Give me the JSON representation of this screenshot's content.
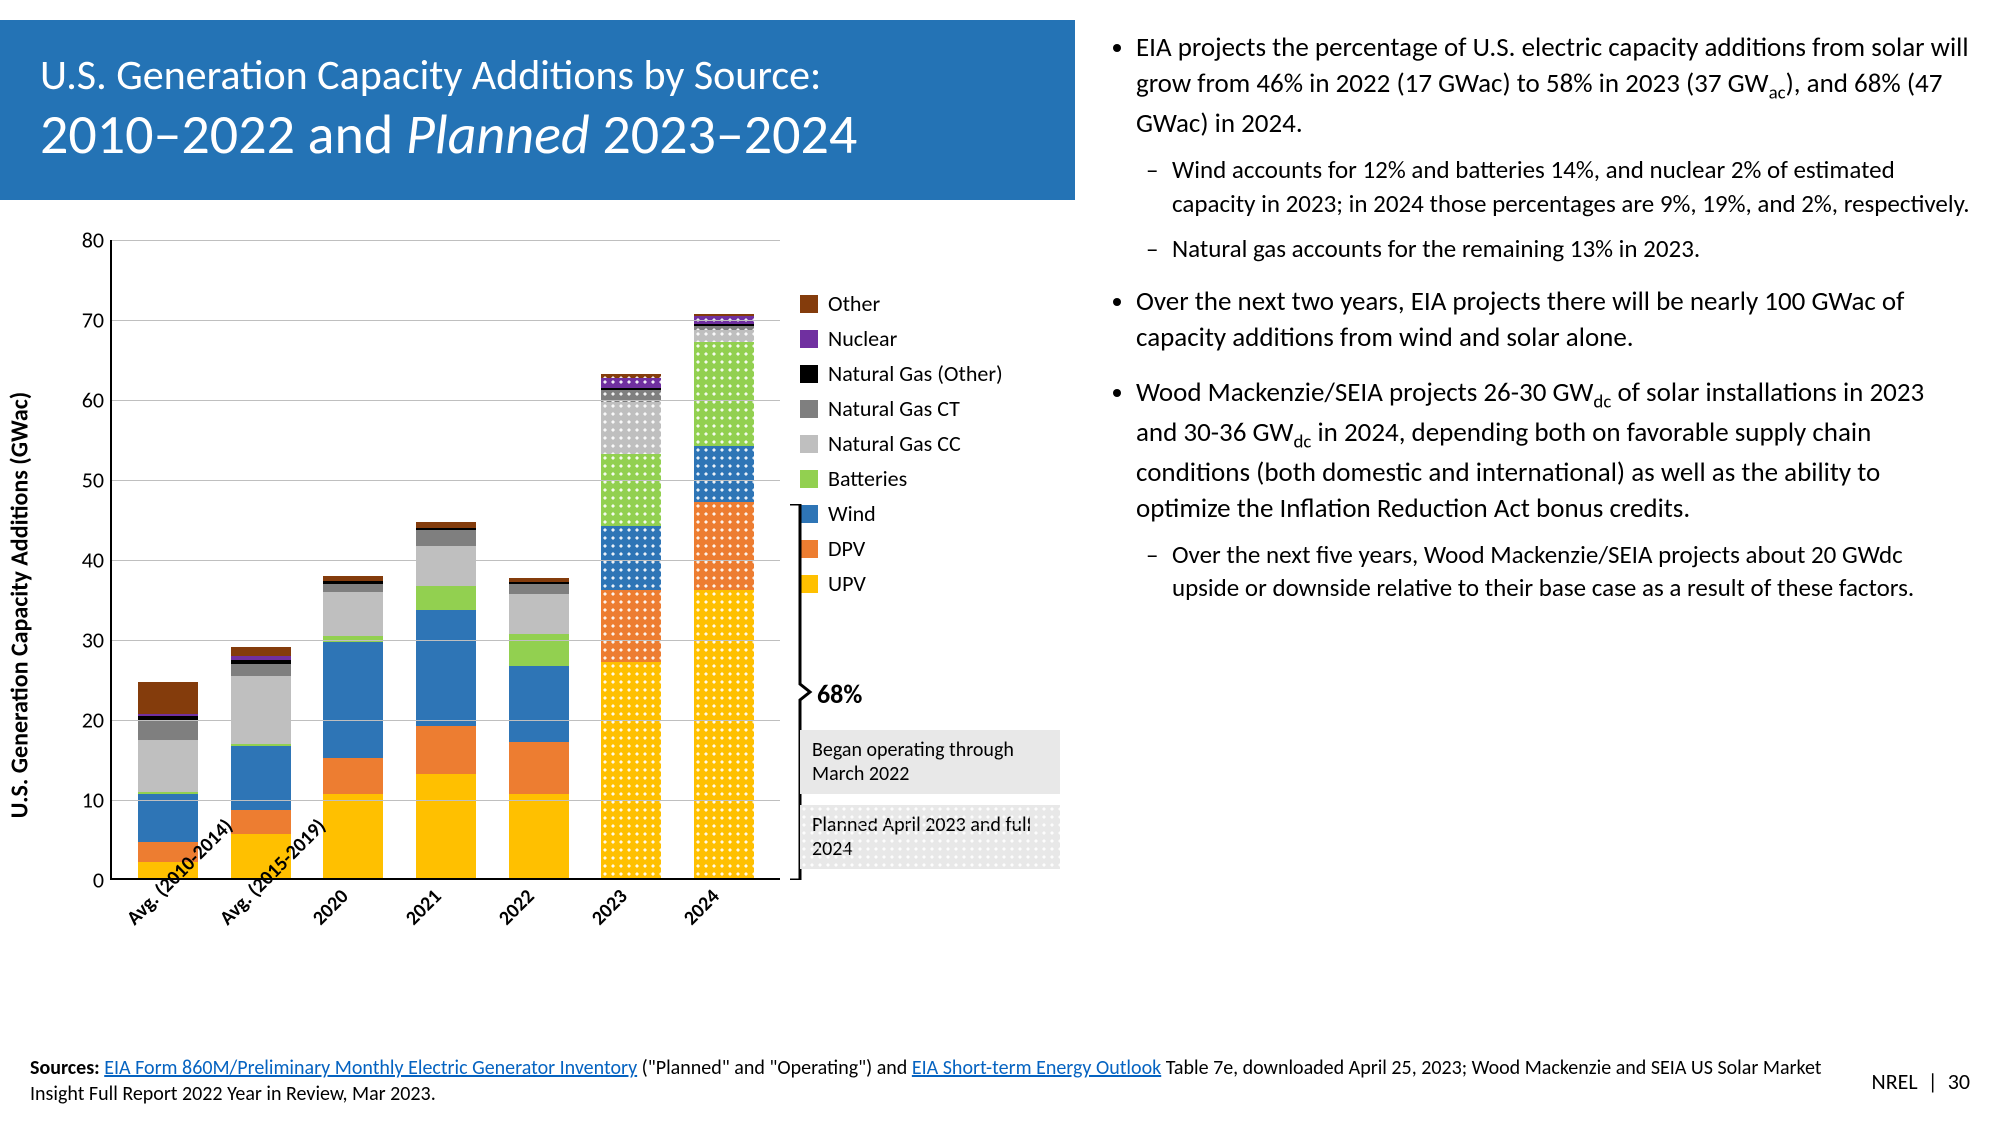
{
  "title": {
    "line1": "U.S. Generation Capacity Additions by Source:",
    "line2_a": "2010–2022 and ",
    "line2_b_italic": "Planned",
    "line2_c": " 2023–2024",
    "banner_bg": "#2473b5",
    "text_color": "#ffffff"
  },
  "chart": {
    "type": "stacked-bar",
    "y_axis_label": "U.S. Generation Capacity Additions (GWac)",
    "ylim": [
      0,
      80
    ],
    "ytick_step": 10,
    "grid_color": "#bfbfbf",
    "axis_color": "#000000",
    "label_fontsize": 24,
    "tick_fontsize": 22,
    "categories": [
      "Avg. (2010-2014)",
      "Avg. (2015-2019)",
      "2020",
      "2021",
      "2022",
      "2023",
      "2024"
    ],
    "series": [
      {
        "key": "UPV",
        "label": "UPV",
        "color": "#ffc000"
      },
      {
        "key": "DPV",
        "label": "DPV",
        "color": "#ed7d31"
      },
      {
        "key": "Wind",
        "label": "Wind",
        "color": "#2e75b6"
      },
      {
        "key": "Batteries",
        "label": "Batteries",
        "color": "#92d050"
      },
      {
        "key": "NGCC",
        "label": "Natural Gas CC",
        "color": "#bfbfbf"
      },
      {
        "key": "NGCT",
        "label": "Natural Gas CT",
        "color": "#7f7f7f"
      },
      {
        "key": "NGOther",
        "label": "Natural Gas (Other)",
        "color": "#000000"
      },
      {
        "key": "Nuclear",
        "label": "Nuclear",
        "color": "#7030a0"
      },
      {
        "key": "Other",
        "label": "Other",
        "color": "#843c0c"
      }
    ],
    "data": [
      {
        "UPV": 2.0,
        "DPV": 2.5,
        "Wind": 6.0,
        "Batteries": 0.2,
        "NGCC": 6.5,
        "NGCT": 2.5,
        "NGOther": 0.6,
        "Nuclear": 0.2,
        "Other": 4.0,
        "planned": false
      },
      {
        "UPV": 5.5,
        "DPV": 3.0,
        "Wind": 8.0,
        "Batteries": 0.3,
        "NGCC": 8.5,
        "NGCT": 1.5,
        "NGOther": 0.4,
        "Nuclear": 0.5,
        "Other": 1.2,
        "planned": false
      },
      {
        "UPV": 10.5,
        "DPV": 4.5,
        "Wind": 14.5,
        "Batteries": 0.8,
        "NGCC": 5.5,
        "NGCT": 1.0,
        "NGOther": 0.3,
        "Nuclear": 0.0,
        "Other": 0.6,
        "planned": false
      },
      {
        "UPV": 13.0,
        "DPV": 6.0,
        "Wind": 14.5,
        "Batteries": 3.0,
        "NGCC": 5.0,
        "NGCT": 2.0,
        "NGOther": 0.3,
        "Nuclear": 0.0,
        "Other": 0.7,
        "planned": false
      },
      {
        "UPV": 10.5,
        "DPV": 6.5,
        "Wind": 9.5,
        "Batteries": 4.0,
        "NGCC": 5.0,
        "NGCT": 1.2,
        "NGOther": 0.3,
        "Nuclear": 0.0,
        "Other": 0.5,
        "planned": false
      },
      {
        "UPV": 27.0,
        "DPV": 9.0,
        "Wind": 8.0,
        "Batteries": 9.0,
        "NGCC": 6.5,
        "NGCT": 1.5,
        "NGOther": 0.3,
        "Nuclear": 1.2,
        "Other": 0.5,
        "planned": true
      },
      {
        "UPV": 36.0,
        "DPV": 11.0,
        "Wind": 7.0,
        "Batteries": 13.0,
        "NGCC": 1.5,
        "NGCT": 0.5,
        "NGOther": 0.2,
        "Nuclear": 1.0,
        "Other": 0.3,
        "planned": true
      }
    ],
    "annotation": {
      "label": "68%",
      "bracket_low": 0,
      "bracket_high": 47,
      "x_index": 6
    },
    "footnote_operating": "Began operating through March 2022",
    "footnote_planned": "Planned April 2023 and full 2024",
    "footnote_bg": "#e8e8e8"
  },
  "bullets": {
    "items": [
      {
        "text": "EIA projects the percentage of U.S. electric capacity additions from solar will grow from 46% in 2022 (17 GWac) to 58% in 2023 (37 GW{sub:ac}), and 68% (47 GWac) in 2024.",
        "sub": [
          "Wind accounts for 12% and batteries 14%, and nuclear 2% of estimated capacity in 2023; in 2024 those percentages are 9%, 19%, and 2%, respectively.",
          "Natural gas accounts for the remaining 13% in 2023."
        ]
      },
      {
        "text": "Over the next two years, EIA projects there will be nearly 100 GWac of capacity additions from wind and solar alone."
      },
      {
        "text": "Wood Mackenzie/SEIA projects 26-30 GW{sub:dc} of solar installations in 2023 and 30-36 GW{sub:dc} in 2024, depending both on favorable supply chain conditions (both domestic and international) as well as the ability to optimize the Inflation Reduction Act bonus credits.",
        "sub": [
          "Over the next five years, Wood Mackenzie/SEIA projects about 20 GWdc upside or downside relative to their base case as a result of these factors."
        ]
      }
    ]
  },
  "sources": {
    "prefix": "Sources: ",
    "link1_text": "EIA Form 860M/Preliminary Monthly Electric Generator Inventory",
    "mid1": " (\"Planned\" and \"Operating\") and ",
    "link2_text": "EIA Short-term Energy Outlook",
    "suffix": " Table 7e, downloaded April 25, 2023; Wood Mackenzie and SEIA US Solar Market Insight Full Report 2022 Year in Review, Mar 2023."
  },
  "footer": {
    "org": "NREL",
    "page": "30"
  }
}
